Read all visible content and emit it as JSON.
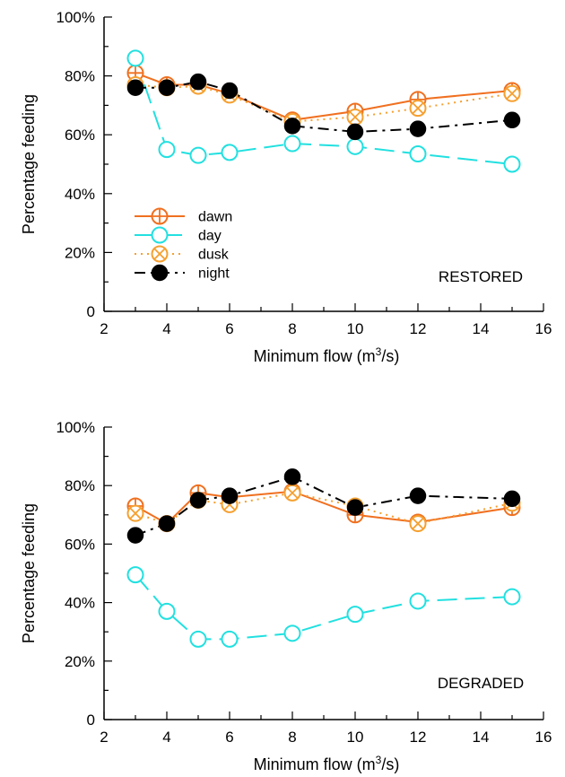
{
  "chart_data": [
    {
      "type": "line",
      "panel_label": "RESTORED",
      "xlabel": "Minimum flow (m",
      "xlabel_sup": "3",
      "xlabel_tail": "/s)",
      "ylabel": "Percentage feeding",
      "xlim": [
        2,
        16
      ],
      "ylim": [
        0,
        100
      ],
      "xticks": [
        "2",
        "4",
        "6",
        "8",
        "10",
        "12",
        "14",
        "16"
      ],
      "yticks": [
        "0",
        "20%",
        "40%",
        "60%",
        "80%",
        "100%"
      ],
      "grid": false,
      "legend_position": "lower-left",
      "x": [
        3,
        4,
        5,
        6,
        8,
        10,
        12,
        15
      ],
      "series": [
        {
          "name": "dawn",
          "color": "#f07020",
          "marker": "circle-plus",
          "line": "solid",
          "values": [
            81,
            77,
            77,
            74,
            65,
            68,
            72,
            75
          ]
        },
        {
          "name": "day",
          "color": "#22e0e0",
          "marker": "circle-open",
          "line": "long-dash",
          "values": [
            86,
            55,
            53,
            54,
            57,
            56,
            53.5,
            50
          ]
        },
        {
          "name": "dusk",
          "color": "#f5a030",
          "marker": "circle-x",
          "line": "dotted",
          "values": [
            77,
            76,
            76.5,
            73.5,
            64.5,
            66,
            69,
            74
          ]
        },
        {
          "name": "night",
          "color": "#000000",
          "marker": "circle-filled",
          "line": "dash-dot",
          "values": [
            76,
            76,
            78,
            75,
            63,
            61,
            62,
            65
          ]
        }
      ]
    },
    {
      "type": "line",
      "panel_label": "DEGRADED",
      "xlabel": "Minimum flow (m",
      "xlabel_sup": "3",
      "xlabel_tail": "/s)",
      "ylabel": "Percentage feeding",
      "xlim": [
        2,
        16
      ],
      "ylim": [
        0,
        100
      ],
      "xticks": [
        "2",
        "4",
        "6",
        "8",
        "10",
        "12",
        "14",
        "16"
      ],
      "yticks": [
        "0",
        "20%",
        "40%",
        "60%",
        "80%",
        "100%"
      ],
      "grid": false,
      "x": [
        3,
        4,
        5,
        6,
        8,
        10,
        12,
        15
      ],
      "series": [
        {
          "name": "dawn",
          "color": "#f07020",
          "marker": "circle-plus",
          "line": "solid",
          "values": [
            73,
            67,
            77.5,
            76,
            78,
            70,
            67.5,
            72.5
          ]
        },
        {
          "name": "day",
          "color": "#22e0e0",
          "marker": "circle-open",
          "line": "long-dash",
          "values": [
            49.5,
            37,
            27.5,
            27.5,
            29.5,
            36,
            40.5,
            42
          ]
        },
        {
          "name": "dusk",
          "color": "#f5a030",
          "marker": "circle-x",
          "line": "dotted",
          "values": [
            70.5,
            67,
            75,
            73.5,
            77.5,
            73,
            67,
            74
          ]
        },
        {
          "name": "night",
          "color": "#000000",
          "marker": "circle-filled",
          "line": "dash-dot",
          "values": [
            63,
            67,
            75,
            76.5,
            83,
            72.5,
            76.5,
            75.5
          ]
        }
      ]
    }
  ]
}
